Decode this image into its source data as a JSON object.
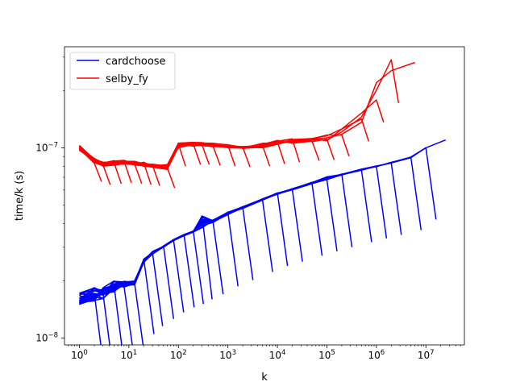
{
  "chart_data": {
    "type": "line",
    "title": "",
    "xlabel": "k",
    "ylabel": "time/k (s)",
    "xscale": "log",
    "yscale": "log",
    "xlim": [
      0.5,
      60000000
    ],
    "ylim": [
      9.2e-09,
      3.4e-07
    ],
    "grid": false,
    "legend_position": "top-left",
    "x_ticks": [
      {
        "value": 1,
        "base": "10",
        "exp": "0"
      },
      {
        "value": 10,
        "base": "10",
        "exp": "1"
      },
      {
        "value": 100,
        "base": "10",
        "exp": "2"
      },
      {
        "value": 1000,
        "base": "10",
        "exp": "3"
      },
      {
        "value": 10000,
        "base": "10",
        "exp": "4"
      },
      {
        "value": 100000,
        "base": "10",
        "exp": "5"
      },
      {
        "value": 1000000,
        "base": "10",
        "exp": "6"
      },
      {
        "value": 10000000,
        "base": "10",
        "exp": "7"
      }
    ],
    "y_ticks": [
      {
        "value": 1e-08,
        "base": "10",
        "exp": "−8"
      },
      {
        "value": 1e-07,
        "base": "10",
        "exp": "−7"
      }
    ],
    "series": [
      {
        "name": "cardchoose",
        "color": "#0000ff",
        "x": [
          1,
          2,
          3,
          5,
          8,
          13,
          20,
          30,
          50,
          80,
          130,
          200,
          300,
          500,
          1000,
          2000,
          5000,
          10000,
          20000,
          50000,
          100000,
          200000,
          500000,
          1000000,
          2000000,
          5000000,
          10000000,
          25000000
        ],
        "y": [
          1.5e-08,
          1.55e-08,
          1.6e-08,
          1.75e-08,
          1.85e-08,
          1.9e-08,
          2.5e-08,
          2.75e-08,
          3e-08,
          3.25e-08,
          3.45e-08,
          3.6e-08,
          3.8e-08,
          4.05e-08,
          4.45e-08,
          4.8e-08,
          5.3e-08,
          5.7e-08,
          6e-08,
          6.45e-08,
          6.8e-08,
          7.15e-08,
          7.6e-08,
          7.95e-08,
          8.3e-08,
          8.8e-08,
          1e-07,
          1.1e-07
        ],
        "y_top": [
          1.75e-08,
          1.85e-08,
          1.85e-08,
          2e-08,
          2e-08,
          2e-08,
          2.6e-08,
          2.85e-08,
          3.05e-08,
          3.3e-08,
          3.5e-08,
          3.65e-08,
          4.4e-08,
          4.2e-08,
          4.6e-08,
          4.9e-08,
          5.4e-08,
          5.8e-08,
          6.1e-08,
          6.6e-08,
          7.05e-08,
          7.35e-08,
          7.75e-08,
          8.1e-08,
          8.45e-08,
          9e-08,
          1e-07,
          1.1e-07
        ]
      },
      {
        "name": "selby_fy",
        "color": "#ff0000",
        "x": [
          1,
          2,
          3,
          5,
          8,
          13,
          20,
          30,
          60,
          100,
          200,
          300,
          500,
          1000,
          2000,
          5000,
          10000,
          20000,
          50000,
          100000,
          200000,
          500000,
          1000000,
          2000000,
          6000000
        ],
        "y": [
          9.7e-08,
          8.3e-08,
          8e-08,
          8.1e-08,
          8.2e-08,
          8.1e-08,
          8e-08,
          7.9e-08,
          7.7e-08,
          1e-07,
          1.02e-07,
          1.02e-07,
          1.01e-07,
          1e-07,
          9.9e-08,
          1e-07,
          1.03e-07,
          1.05e-07,
          1.07e-07,
          1.08e-07,
          1.13e-07,
          1.35e-07,
          1.7e-07,
          2.15e-07,
          2.75e-07
        ],
        "y_top": [
          1.03e-07,
          8.8e-08,
          8.4e-08,
          8.6e-08,
          8.6e-08,
          8.5e-08,
          8.4e-08,
          8.3e-08,
          8.2e-08,
          1.06e-07,
          1.07e-07,
          1.07e-07,
          1.06e-07,
          1.04e-07,
          1.02e-07,
          1.06e-07,
          1.1e-07,
          1.12e-07,
          1.14e-07,
          1.18e-07,
          1.3e-07,
          1.6e-07,
          2.35e-07,
          2.95e-07,
          3e-07
        ]
      }
    ]
  }
}
